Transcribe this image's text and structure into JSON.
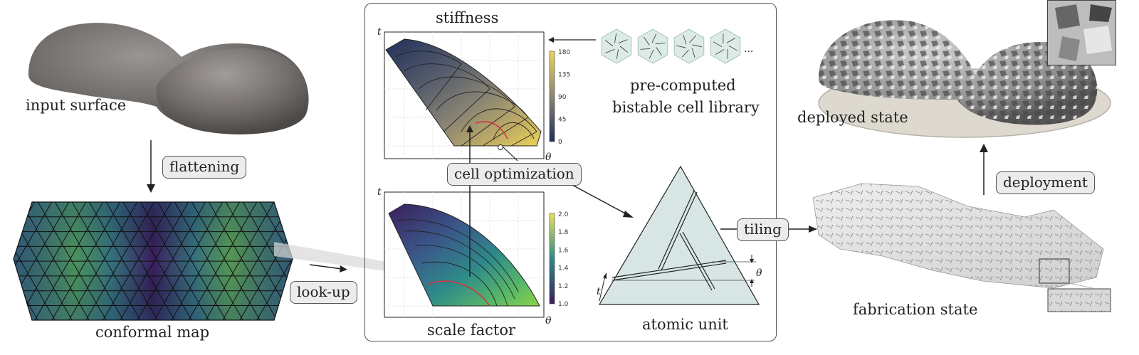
{
  "labels": {
    "input_surface": "input surface",
    "conformal_map": "conformal map",
    "stiffness": "stiffness",
    "scale_factor": "scale factor",
    "pre_computed_1": "pre-computed",
    "pre_computed_2": "bistable cell library",
    "ellipsis": "...",
    "atomic_unit": "atomic unit",
    "deployed_state": "deployed state",
    "fabrication_state": "fabrication state",
    "axis_t": "t",
    "axis_theta": "θ"
  },
  "tags": {
    "flattening": "flattening",
    "look_up": "look-up",
    "cell_optimization": "cell optimization",
    "tiling": "tiling",
    "deployment": "deployment"
  },
  "colorbars": {
    "stiffness_ticks": [
      "180",
      "135",
      "90",
      "45",
      "0"
    ],
    "scale_ticks": [
      "2.0",
      "1.8",
      "1.6",
      "1.4",
      "1.2",
      "1.0"
    ]
  },
  "colors": {
    "viridis_low": "#3b1f5c",
    "viridis_mid": "#2e8a8a",
    "viridis_high": "#e6e25a",
    "cividis_low": "#1f2f5a",
    "cividis_high": "#ecd35a",
    "highlight": "#d2363f",
    "panel_border": "#555555"
  }
}
